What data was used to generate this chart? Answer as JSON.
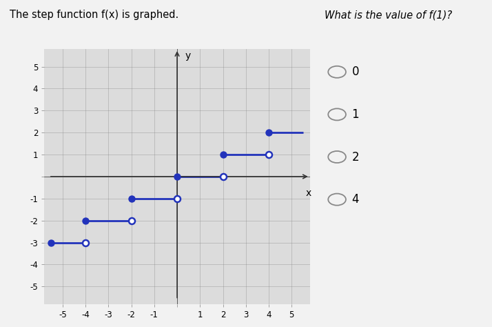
{
  "title_left": "The step function f(x) is graphed.",
  "title_right": "What is the value of f(1)?",
  "choices": [
    "0",
    "1",
    "2",
    "4"
  ],
  "background_color": "#f2f2f2",
  "plot_bg": "#dcdcdc",
  "line_color": "#2233bb",
  "xlim": [
    -5.8,
    5.8
  ],
  "ylim": [
    -5.8,
    5.8
  ],
  "xticks": [
    -5,
    -4,
    -3,
    -2,
    -1,
    0,
    1,
    2,
    3,
    4,
    5
  ],
  "yticks": [
    -5,
    -4,
    -3,
    -2,
    -1,
    0,
    1,
    2,
    3,
    4,
    5
  ],
  "segments": [
    {
      "x_start": -5.5,
      "x_end": -4,
      "y": -3,
      "filled_left": true,
      "open_right": true
    },
    {
      "x_start": -4,
      "x_end": -2,
      "y": -2,
      "filled_left": true,
      "open_right": true
    },
    {
      "x_start": -2,
      "x_end": 0,
      "y": -1,
      "filled_left": true,
      "open_right": true
    },
    {
      "x_start": 0,
      "x_end": 2,
      "y": 0,
      "filled_left": true,
      "open_right": true
    },
    {
      "x_start": 2,
      "x_end": 4,
      "y": 1,
      "filled_left": true,
      "open_right": true
    },
    {
      "x_start": 4,
      "x_end": 5.5,
      "y": 2,
      "filled_left": true,
      "open_right": false
    }
  ],
  "line_width": 2.0,
  "fig_width": 7.14,
  "fig_height": 4.74
}
